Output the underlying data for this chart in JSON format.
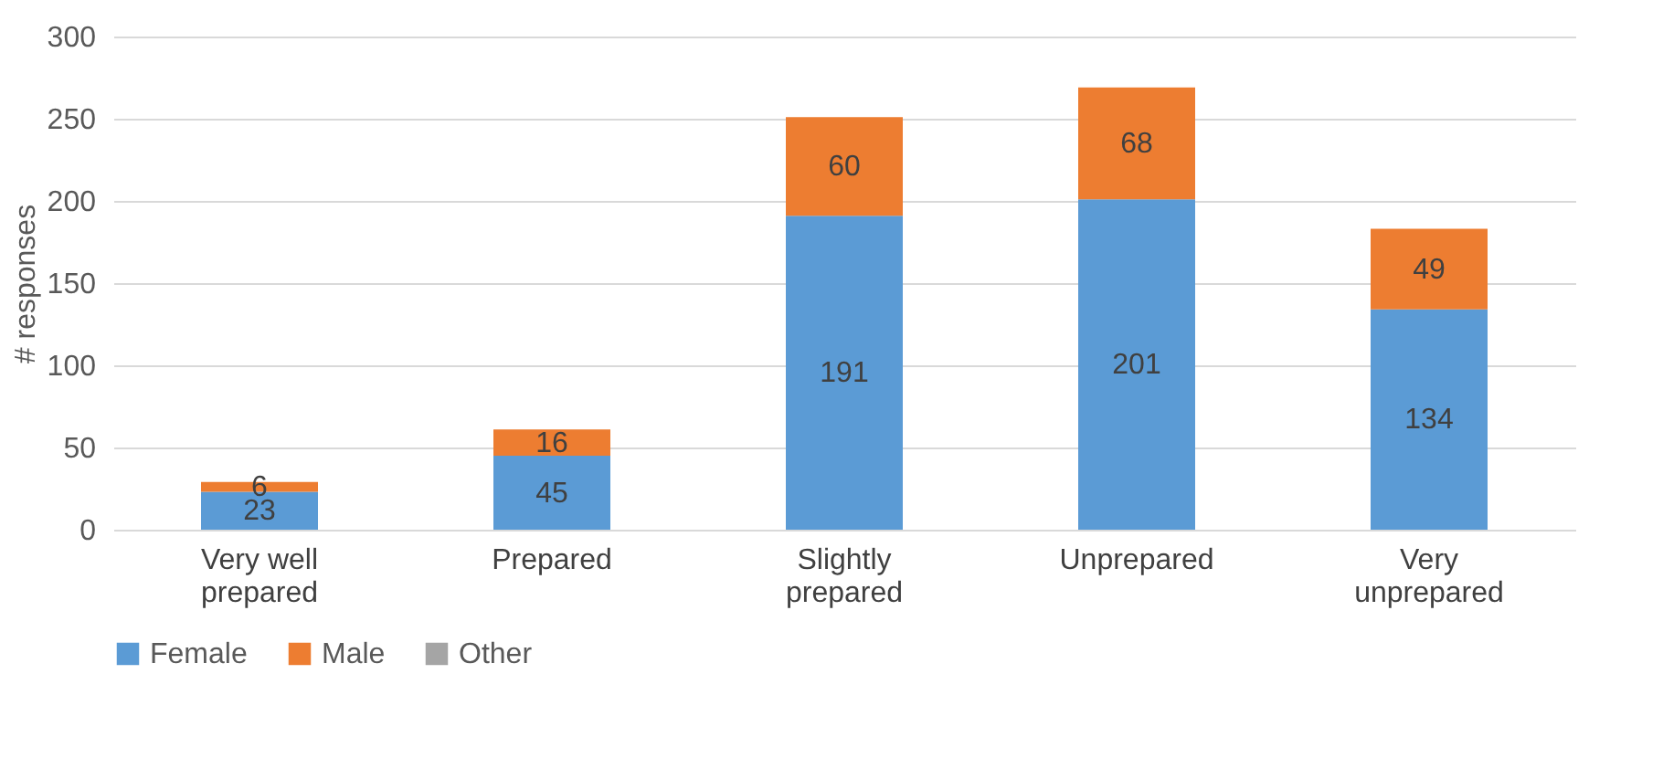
{
  "chart_data": {
    "type": "bar",
    "ylabel": "# responses",
    "categories": [
      "Very well prepared",
      "Prepared",
      "Slightly prepared",
      "Unprepared",
      "Very unprepared"
    ],
    "series": [
      {
        "name": "Female",
        "color": "#5b9bd5",
        "values": [
          23,
          45,
          191,
          201,
          134
        ]
      },
      {
        "name": "Male",
        "color": "#ed7d31",
        "values": [
          6,
          16,
          60,
          68,
          49
        ]
      },
      {
        "name": "Other",
        "color": "#a5a5a5",
        "values": [
          null,
          null,
          null,
          null,
          null
        ]
      }
    ],
    "stacked": true,
    "data_labels": true,
    "ylim": [
      0,
      300
    ],
    "yticks": [
      0,
      50,
      100,
      150,
      200,
      250,
      300
    ],
    "grid": "y",
    "legend": "bottom"
  }
}
